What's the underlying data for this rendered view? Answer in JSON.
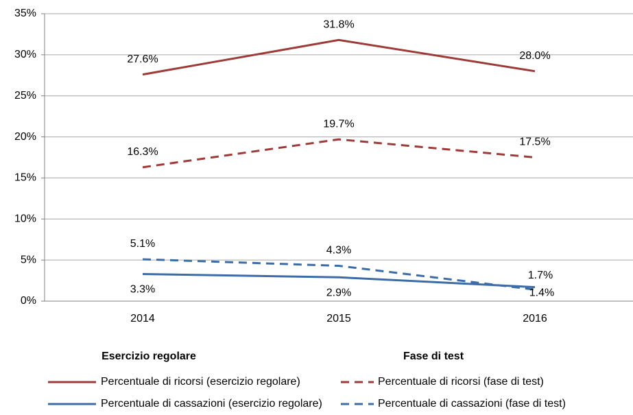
{
  "chart_data": {
    "type": "line",
    "categories": [
      "2014",
      "2015",
      "2016"
    ],
    "ylim": [
      0,
      35
    ],
    "yticks": [
      {
        "value": 0,
        "label": "0%"
      },
      {
        "value": 5,
        "label": "5%"
      },
      {
        "value": 10,
        "label": "10%"
      },
      {
        "value": 15,
        "label": "15%"
      },
      {
        "value": 20,
        "label": "20%"
      },
      {
        "value": 25,
        "label": "25%"
      },
      {
        "value": 30,
        "label": "30%"
      },
      {
        "value": 35,
        "label": "35%"
      }
    ],
    "grid": true,
    "legend_groups": [
      "Esercizio regolare",
      "Fase di test"
    ],
    "series": [
      {
        "name": "Percentuale di ricorsi (esercizio regolare)",
        "color": "#9e3a38",
        "dashed": false,
        "values": [
          27.6,
          31.8,
          28.0
        ],
        "value_labels": [
          "27.6%",
          "31.8%",
          "28.0%"
        ]
      },
      {
        "name": "Percentuale di ricorsi (fase di test)",
        "color": "#9e3a38",
        "dashed": true,
        "values": [
          16.3,
          19.7,
          17.5
        ],
        "value_labels": [
          "16.3%",
          "19.7%",
          "17.5%"
        ]
      },
      {
        "name": "Percentuale di cassazioni (esercizio regolare)",
        "color": "#3c6ca8",
        "dashed": false,
        "values": [
          3.3,
          2.9,
          1.7
        ],
        "value_labels": [
          "3.3%",
          "2.9%",
          "1.7%"
        ]
      },
      {
        "name": "Percentuale di cassazioni (fase di test)",
        "color": "#3c6ca8",
        "dashed": true,
        "values": [
          5.1,
          4.3,
          1.4
        ],
        "value_labels": [
          "5.1%",
          "4.3%",
          "1.4%"
        ]
      }
    ]
  }
}
